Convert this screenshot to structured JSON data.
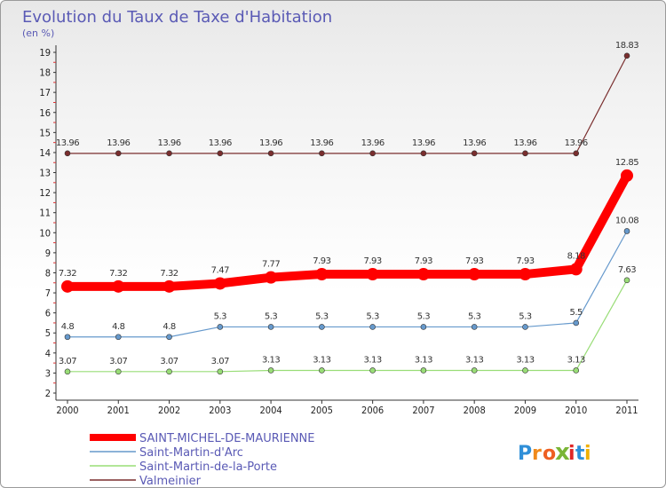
{
  "chart_data": {
    "type": "line",
    "title": "Evolution du Taux de Taxe d'Habitation",
    "subtitle": "(en %)",
    "categories": [
      "2000",
      "2001",
      "2002",
      "2003",
      "2004",
      "2005",
      "2006",
      "2007",
      "2008",
      "2009",
      "2010",
      "2011"
    ],
    "ylim": [
      2,
      19
    ],
    "yticks": [
      2,
      3,
      4,
      5,
      6,
      7,
      8,
      9,
      10,
      11,
      12,
      13,
      14,
      15,
      16,
      17,
      18,
      19
    ],
    "series": [
      {
        "name": "SAINT-MICHEL-DE-MAURIENNE",
        "color": "#ff0000",
        "values": [
          7.32,
          7.32,
          7.32,
          7.47,
          7.77,
          7.93,
          7.93,
          7.93,
          7.93,
          7.93,
          8.18,
          12.85
        ],
        "labels": [
          "7.32",
          "7.32",
          "7.32",
          "7.47",
          "7.77",
          "7.93",
          "7.93",
          "7.93",
          "7.93",
          "7.93",
          "8.18",
          "12.85"
        ]
      },
      {
        "name": "Saint-Martin-d'Arc",
        "color": "#6699cc",
        "values": [
          4.8,
          4.8,
          4.8,
          5.3,
          5.3,
          5.3,
          5.3,
          5.3,
          5.3,
          5.3,
          5.5,
          10.08
        ],
        "labels": [
          "4.8",
          "4.8",
          "4.8",
          "5.3",
          "5.3",
          "5.3",
          "5.3",
          "5.3",
          "5.3",
          "5.3",
          "5.5",
          "10.08"
        ]
      },
      {
        "name": "Saint-Martin-de-la-Porte",
        "color": "#99dd77",
        "values": [
          3.07,
          3.07,
          3.07,
          3.07,
          3.13,
          3.13,
          3.13,
          3.13,
          3.13,
          3.13,
          3.13,
          7.63
        ],
        "labels": [
          "3.07",
          "3.07",
          "3.07",
          "3.07",
          "3.13",
          "3.13",
          "3.13",
          "3.13",
          "3.13",
          "3.13",
          "3.13",
          "7.63"
        ]
      },
      {
        "name": "Valmeinier",
        "color": "#7a2e2e",
        "values": [
          13.96,
          13.96,
          13.96,
          13.96,
          13.96,
          13.96,
          13.96,
          13.96,
          13.96,
          13.96,
          13.96,
          18.83
        ],
        "labels": [
          "13.96",
          "13.96",
          "13.96",
          "13.96",
          "13.96",
          "13.96",
          "13.96",
          "13.96",
          "13.96",
          "13.96",
          "13.96",
          "18.83"
        ]
      }
    ],
    "legend_position": "bottom-left"
  },
  "brand": {
    "letters": [
      "P",
      "r",
      "o",
      "x",
      "i",
      "t",
      "i"
    ],
    "colors": [
      "#2f8fd8",
      "#f08a1c",
      "#ee5f22",
      "#7ab536",
      "#e02727",
      "#2f8fd8",
      "#f0b000"
    ]
  }
}
